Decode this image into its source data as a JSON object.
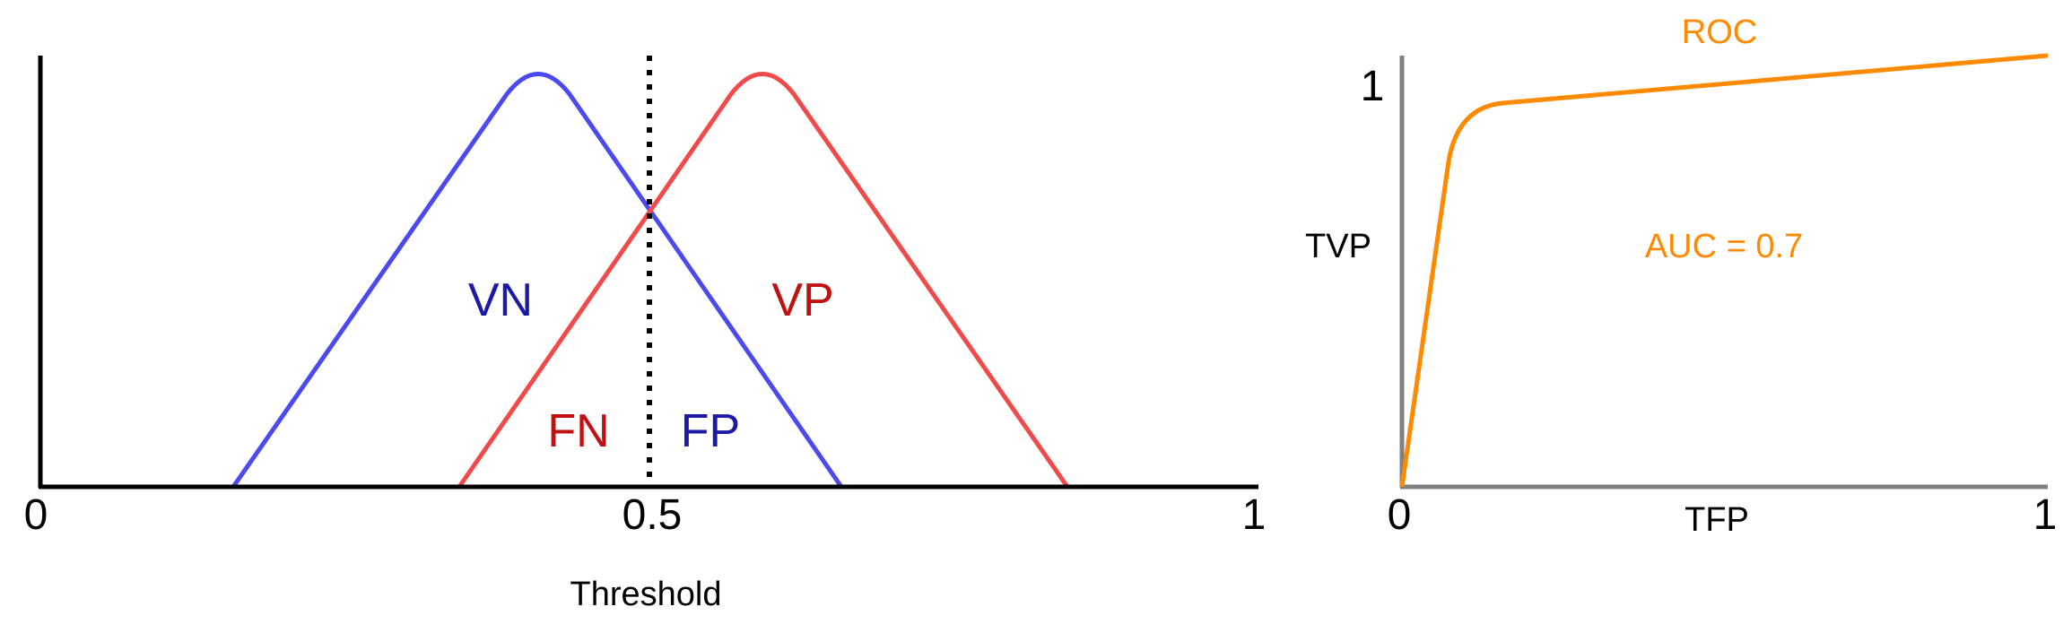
{
  "colors": {
    "negative_curve": "#4a4af0",
    "positive_curve": "#f24a4a",
    "negative_label": "#1a1aa6",
    "positive_label": "#c01010",
    "roc": "#ff8a00",
    "roc_axis": "#808080",
    "axis": "#000000"
  },
  "left_panel": {
    "x_ticks": [
      "0",
      "0.5",
      "1"
    ],
    "x_label": "Threshold",
    "region_labels": {
      "true_negative": "VN",
      "true_positive": "VP",
      "false_negative": "FN",
      "false_positive": "FP"
    },
    "threshold_value": 0.5,
    "line_style": "dotted"
  },
  "right_panel": {
    "title": "ROC",
    "x_label": "TFP",
    "y_label": "TVP",
    "x_ticks": [
      "0",
      "1"
    ],
    "y_tick": "1",
    "annotation": "AUC = 0.7"
  }
}
